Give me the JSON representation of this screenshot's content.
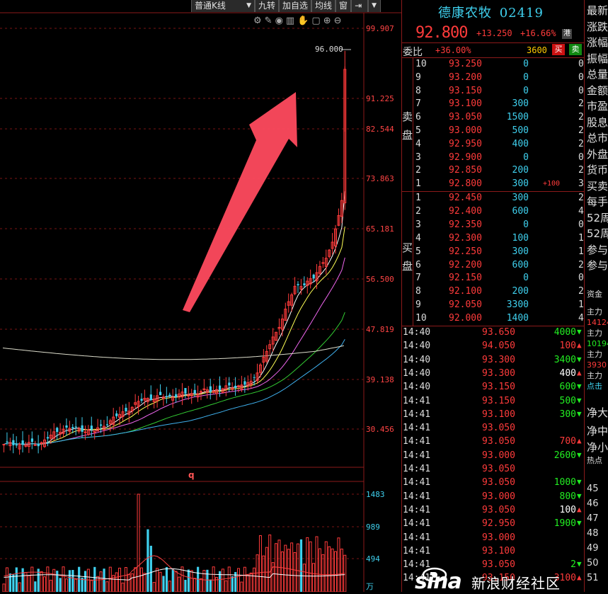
{
  "toolbar": {
    "kline_type": "普通K线",
    "nine_turn": "九转",
    "add_watch": "加自选",
    "ma_line": "均线",
    "window": "窗"
  },
  "chart": {
    "price_axis": [
      "99.907",
      "91.225",
      "82.544",
      "73.863",
      "65.181",
      "56.500",
      "47.819",
      "39.138",
      "30.456"
    ],
    "high_marker": "96.000",
    "period_marker": "q",
    "volume_axis": [
      "1483",
      "989",
      "494",
      "万"
    ]
  },
  "watermark": {
    "logo": "sina",
    "text": "新浪财经社区"
  },
  "quote": {
    "name": "德康农牧",
    "code": "02419",
    "price": "92.800",
    "change": "+13.250",
    "change_pct": "+16.66%",
    "hk_badge": "港",
    "weibi_label": "委比",
    "weibi_value": "+36.00%",
    "weibi_volume": "3600",
    "buy_btn": "买",
    "sell_btn": "卖",
    "ask_label_1": "卖",
    "ask_label_2": "盘",
    "bid_label_1": "买",
    "bid_label_2": "盘",
    "asks": [
      {
        "level": "10",
        "price": "93.250",
        "vol": "0",
        "extra": "",
        "cnt": "0"
      },
      {
        "level": "9",
        "price": "93.200",
        "vol": "0",
        "extra": "",
        "cnt": "0"
      },
      {
        "level": "8",
        "price": "93.150",
        "vol": "0",
        "extra": "",
        "cnt": "0"
      },
      {
        "level": "7",
        "price": "93.100",
        "vol": "300",
        "extra": "",
        "cnt": "2"
      },
      {
        "level": "6",
        "price": "93.050",
        "vol": "1500",
        "extra": "",
        "cnt": "2"
      },
      {
        "level": "5",
        "price": "93.000",
        "vol": "500",
        "extra": "",
        "cnt": "2"
      },
      {
        "level": "4",
        "price": "92.950",
        "vol": "400",
        "extra": "",
        "cnt": "2"
      },
      {
        "level": "3",
        "price": "92.900",
        "vol": "0",
        "extra": "",
        "cnt": "0"
      },
      {
        "level": "2",
        "price": "92.850",
        "vol": "200",
        "extra": "",
        "cnt": "2"
      },
      {
        "level": "1",
        "price": "92.800",
        "vol": "300",
        "extra": "+100",
        "cnt": "3"
      }
    ],
    "bids": [
      {
        "level": "1",
        "price": "92.450",
        "vol": "300",
        "cnt": "2"
      },
      {
        "level": "2",
        "price": "92.400",
        "vol": "600",
        "cnt": "4"
      },
      {
        "level": "3",
        "price": "92.350",
        "vol": "0",
        "cnt": "0"
      },
      {
        "level": "4",
        "price": "92.300",
        "vol": "100",
        "cnt": "1"
      },
      {
        "level": "5",
        "price": "92.250",
        "vol": "300",
        "cnt": "1"
      },
      {
        "level": "6",
        "price": "92.200",
        "vol": "600",
        "cnt": "2"
      },
      {
        "level": "7",
        "price": "92.150",
        "vol": "0",
        "cnt": "0"
      },
      {
        "level": "8",
        "price": "92.100",
        "vol": "200",
        "cnt": "2"
      },
      {
        "level": "9",
        "price": "92.050",
        "vol": "3300",
        "cnt": "1"
      },
      {
        "level": "10",
        "price": "92.000",
        "vol": "1400",
        "cnt": "4"
      }
    ],
    "ticks": [
      {
        "time": "14:40",
        "price": "93.650",
        "vol": "4000",
        "dir": "down"
      },
      {
        "time": "14:40",
        "price": "94.050",
        "vol": "100",
        "dir": "up"
      },
      {
        "time": "14:40",
        "price": "93.300",
        "vol": "3400",
        "dir": "down"
      },
      {
        "time": "14:40",
        "price": "93.300",
        "vol": "400",
        "dir": "up"
      },
      {
        "time": "14:40",
        "price": "93.150",
        "vol": "600",
        "dir": "down"
      },
      {
        "time": "14:41",
        "price": "93.150",
        "vol": "500",
        "dir": "down"
      },
      {
        "time": "14:41",
        "price": "93.100",
        "vol": "300",
        "dir": "down"
      },
      {
        "time": "14:41",
        "price": "93.050",
        "vol": "",
        "dir": ""
      },
      {
        "time": "14:41",
        "price": "93.050",
        "vol": "700",
        "dir": "up"
      },
      {
        "time": "14:41",
        "price": "93.000",
        "vol": "2600",
        "dir": "down"
      },
      {
        "time": "14:41",
        "price": "93.050",
        "vol": "",
        "dir": ""
      },
      {
        "time": "14:41",
        "price": "93.050",
        "vol": "1000",
        "dir": "down"
      },
      {
        "time": "14:41",
        "price": "93.000",
        "vol": "800",
        "dir": "down"
      },
      {
        "time": "14:41",
        "price": "93.050",
        "vol": "100",
        "dir": "up"
      },
      {
        "time": "14:41",
        "price": "92.950",
        "vol": "1900",
        "dir": "down"
      },
      {
        "time": "14:41",
        "price": "93.000",
        "vol": "",
        "dir": ""
      },
      {
        "time": "14:41",
        "price": "93.100",
        "vol": "",
        "dir": ""
      },
      {
        "time": "14:41",
        "price": "93.050",
        "vol": "2",
        "dir": "down"
      },
      {
        "time": "14:41",
        "price": "93.150",
        "vol": "3100",
        "dir": "up"
      }
    ]
  },
  "side": {
    "items": [
      "最新",
      "涨跌",
      "涨幅",
      "振幅",
      "总量",
      "金额",
      "市盈",
      "股息",
      "总市",
      "外盘",
      "货币",
      "买卖",
      "每手",
      "52周",
      "52周",
      "参与",
      "参与"
    ],
    "fund_label": "资金",
    "main_in": "主力",
    "main_in_val": "14124",
    "main_out": "主力",
    "main_out_val": "10194",
    "main_net": "主力",
    "main_net_val": "3930",
    "main_more": "主力",
    "click_link": "点击",
    "net_big": "净大",
    "net_mid": "净中",
    "net_small": "净小",
    "hot_label": "热点",
    "list_nums": [
      "45",
      "46",
      "47",
      "48",
      "49",
      "50",
      "51"
    ]
  },
  "colors": {
    "up": "#ff3b3b",
    "down": "#22ee22",
    "cyan": "#3fd0ee",
    "grid": "#7a1414"
  }
}
